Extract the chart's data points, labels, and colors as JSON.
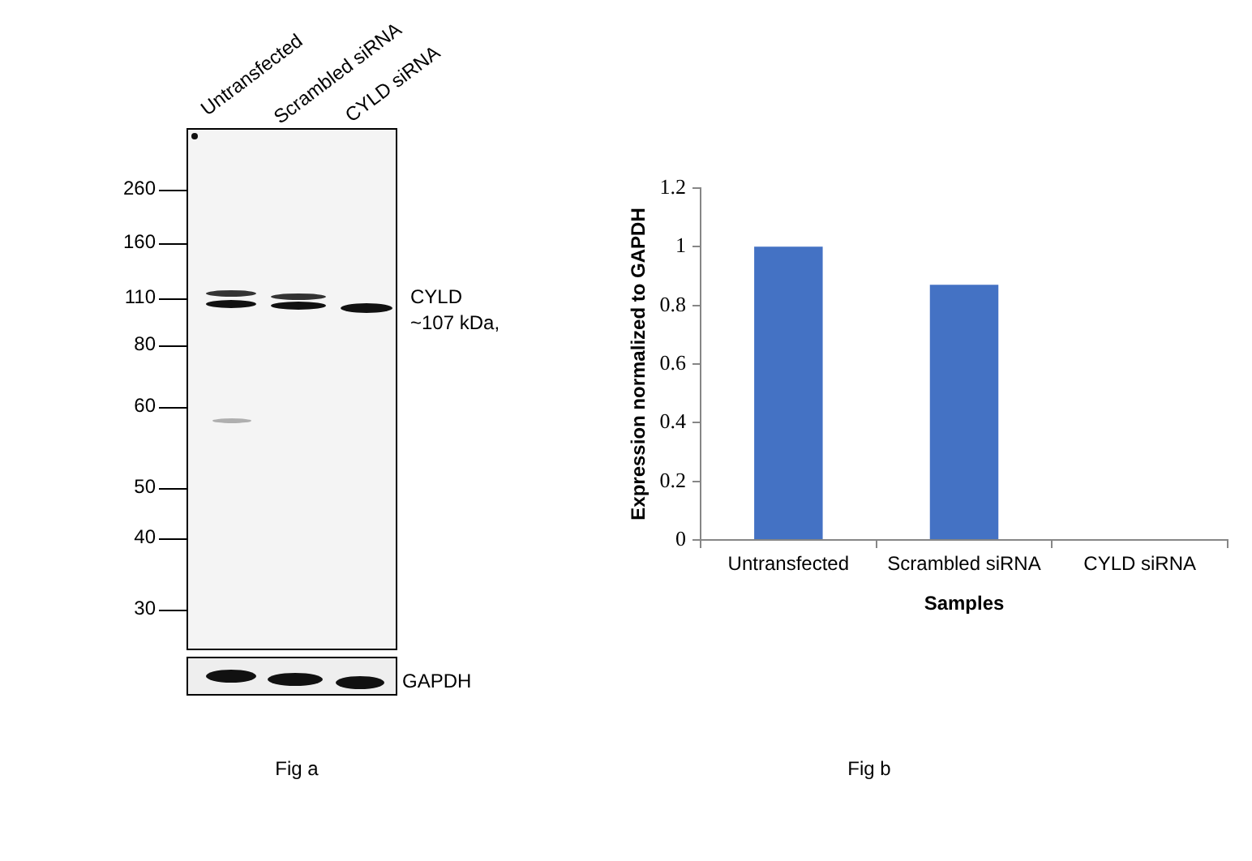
{
  "chart_data": [
    {
      "type": "other",
      "categories": [
        "Untransfected",
        "Scrambled siRNA",
        "CYLD siRNA"
      ],
      "annotations": [
        "260",
        "160",
        "110",
        "80",
        "60",
        "50",
        "40",
        "30",
        "CYLD",
        "~107 kDa,",
        "GAPDH",
        "Fig a"
      ]
    },
    {
      "type": "bar",
      "xlabel": "Samples",
      "ylabel": "Expression normalized to GAPDH",
      "categories": [
        "Untransfected",
        "Scrambled siRNA",
        "CYLD siRNA"
      ],
      "values": [
        1,
        0.87,
        0
      ],
      "color": "#4472c4",
      "ylim": [
        0,
        1.2
      ],
      "yticks": [
        0,
        0.2,
        0.4,
        0.6,
        0.8,
        1,
        1.2
      ],
      "annotations": [
        "Fig b"
      ]
    }
  ]
}
